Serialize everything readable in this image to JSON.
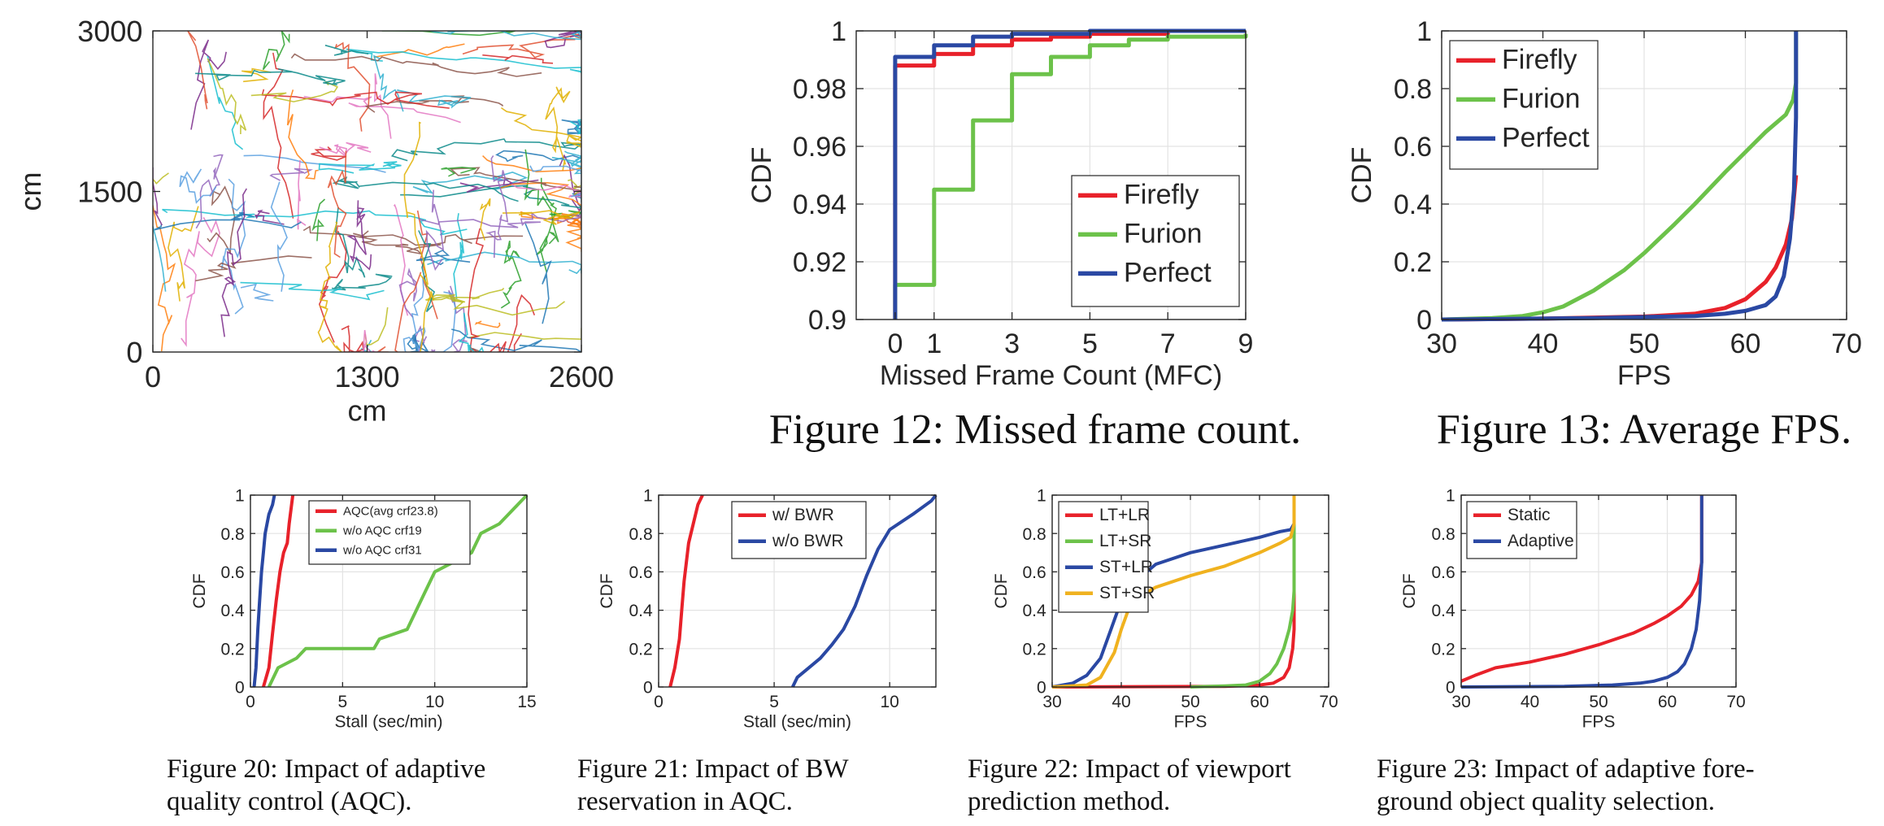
{
  "captions": {
    "fig12": "Figure 12: Missed frame count.",
    "fig13": "Figure 13: Average FPS.",
    "fig20": [
      "Figure 20: Impact of adaptive",
      "quality control (AQC)."
    ],
    "fig21": [
      "Figure 21: Impact of BW",
      "reservation in AQC."
    ],
    "fig22": [
      "Figure 22: Impact of viewport",
      "prediction method."
    ],
    "fig23": [
      "Figure 23: Impact of adaptive fore-",
      "ground object quality selection."
    ]
  },
  "colors": {
    "red": "#E8212A",
    "green": "#6CC24A",
    "blue": "#2A48A3",
    "yellow": "#F0B21F"
  },
  "chart_data": [
    {
      "id": "traj",
      "type": "line",
      "title": "",
      "xlabel": "cm",
      "ylabel": "cm",
      "xlim": [
        0,
        2600
      ],
      "ylim": [
        0,
        3000
      ],
      "xticks": [
        0,
        1300,
        2600
      ],
      "yticks": [
        0,
        1500,
        3000
      ],
      "grid": false,
      "note": "many colored movement trajectories"
    },
    {
      "id": "fig12",
      "type": "line",
      "xlabel": "Missed Frame Count (MFC)",
      "ylabel": "CDF",
      "xlim": [
        -1,
        9
      ],
      "ylim": [
        0.9,
        1.0
      ],
      "xticks": [
        0,
        1,
        3,
        5,
        7,
        9
      ],
      "yticks": [
        0.9,
        0.92,
        0.94,
        0.96,
        0.98,
        1
      ],
      "grid": true,
      "legend": "bottom-right",
      "series": [
        {
          "name": "Firefly",
          "color": "red",
          "steps": [
            [
              0,
              0.9
            ],
            [
              0,
              0.988
            ],
            [
              1,
              0.992
            ],
            [
              2,
              0.995
            ],
            [
              3,
              0.997
            ],
            [
              4,
              0.998
            ],
            [
              5,
              0.999
            ],
            [
              7,
              1.0
            ],
            [
              9,
              1.0
            ]
          ]
        },
        {
          "name": "Furion",
          "color": "green",
          "steps": [
            [
              0,
              0.9
            ],
            [
              0,
              0.912
            ],
            [
              1,
              0.945
            ],
            [
              2,
              0.969
            ],
            [
              3,
              0.985
            ],
            [
              4,
              0.991
            ],
            [
              5,
              0.995
            ],
            [
              6,
              0.997
            ],
            [
              7,
              0.998
            ],
            [
              9,
              0.999
            ]
          ]
        },
        {
          "name": "Perfect",
          "color": "blue",
          "steps": [
            [
              0,
              0.9
            ],
            [
              0,
              0.991
            ],
            [
              1,
              0.995
            ],
            [
              2,
              0.998
            ],
            [
              3,
              0.999
            ],
            [
              5,
              1.0
            ],
            [
              9,
              1.0
            ]
          ]
        }
      ]
    },
    {
      "id": "fig13",
      "type": "line",
      "xlabel": "FPS",
      "ylabel": "CDF",
      "xlim": [
        30,
        70
      ],
      "ylim": [
        0,
        1
      ],
      "xticks": [
        30,
        40,
        50,
        60,
        70
      ],
      "yticks": [
        0,
        0.2,
        0.4,
        0.6,
        0.8,
        1
      ],
      "grid": true,
      "legend": "top-left",
      "series": [
        {
          "name": "Firefly",
          "color": "red",
          "x": [
            30,
            40,
            50,
            55,
            58,
            60,
            62,
            63,
            64,
            64.6,
            65
          ],
          "y": [
            0,
            0.003,
            0.01,
            0.02,
            0.04,
            0.07,
            0.13,
            0.18,
            0.26,
            0.35,
            0.5
          ]
        },
        {
          "name": "Furion",
          "color": "green",
          "x": [
            30,
            35,
            38,
            40,
            42,
            45,
            48,
            50,
            53,
            55,
            58,
            60,
            62,
            64,
            64.7,
            65,
            65
          ],
          "y": [
            0,
            0.005,
            0.012,
            0.025,
            0.045,
            0.1,
            0.17,
            0.23,
            0.33,
            0.4,
            0.51,
            0.58,
            0.65,
            0.71,
            0.76,
            0.82,
            1
          ]
        },
        {
          "name": "Perfect",
          "color": "blue",
          "x": [
            30,
            45,
            55,
            58,
            60,
            62,
            63,
            63.8,
            64.4,
            64.8,
            65,
            65
          ],
          "y": [
            0,
            0.005,
            0.012,
            0.02,
            0.03,
            0.05,
            0.08,
            0.15,
            0.28,
            0.45,
            0.7,
            1
          ]
        }
      ]
    },
    {
      "id": "fig20",
      "type": "line",
      "xlabel": "Stall (sec/min)",
      "ylabel": "CDF",
      "xlim": [
        0,
        15
      ],
      "ylim": [
        0,
        1
      ],
      "xticks": [
        0,
        5,
        10,
        15
      ],
      "yticks": [
        0,
        0.2,
        0.4,
        0.6,
        0.8,
        1
      ],
      "grid": true,
      "legend": "top-right",
      "series": [
        {
          "name": "AQC(avg crf23.8)",
          "color": "red",
          "x": [
            0.7,
            1.0,
            1.2,
            1.4,
            1.6,
            1.8,
            2.0,
            2.1,
            2.3
          ],
          "y": [
            0,
            0.1,
            0.28,
            0.45,
            0.6,
            0.7,
            0.75,
            0.85,
            1.0
          ]
        },
        {
          "name": "w/o AQC crf19",
          "color": "green",
          "x": [
            1.0,
            1.5,
            2.5,
            3.0,
            6.7,
            7.0,
            8.5,
            9.0,
            9.5,
            10.0,
            12.0,
            12.5,
            13.5,
            14.5,
            15.0
          ],
          "y": [
            0,
            0.1,
            0.15,
            0.2,
            0.2,
            0.25,
            0.3,
            0.4,
            0.5,
            0.6,
            0.7,
            0.8,
            0.85,
            0.95,
            1.0
          ]
        },
        {
          "name": "w/o AQC crf31",
          "color": "blue",
          "x": [
            0.2,
            0.3,
            0.4,
            0.5,
            0.6,
            0.7,
            0.8,
            1.0,
            1.2,
            1.3
          ],
          "y": [
            0,
            0.1,
            0.3,
            0.45,
            0.6,
            0.7,
            0.8,
            0.9,
            0.95,
            1.0
          ]
        }
      ]
    },
    {
      "id": "fig21",
      "type": "line",
      "xlabel": "Stall (sec/min)",
      "ylabel": "CDF",
      "xlim": [
        0,
        12
      ],
      "ylim": [
        0,
        1
      ],
      "xticks": [
        0,
        5,
        10
      ],
      "yticks": [
        0,
        0.2,
        0.4,
        0.6,
        0.8,
        1
      ],
      "grid": true,
      "legend": "top-right",
      "series": [
        {
          "name": "w/ BWR",
          "color": "red",
          "x": [
            0.5,
            0.7,
            0.9,
            1.0,
            1.1,
            1.2,
            1.3,
            1.5,
            1.7,
            1.9
          ],
          "y": [
            0,
            0.1,
            0.25,
            0.4,
            0.55,
            0.65,
            0.75,
            0.85,
            0.95,
            1.0
          ]
        },
        {
          "name": "w/o BWR",
          "color": "blue",
          "x": [
            5.8,
            6.0,
            6.5,
            7.0,
            7.5,
            8.0,
            8.5,
            9.0,
            9.5,
            10.0,
            11.0,
            11.8,
            12.0
          ],
          "y": [
            0,
            0.05,
            0.1,
            0.15,
            0.22,
            0.3,
            0.42,
            0.58,
            0.72,
            0.82,
            0.9,
            0.97,
            1.0
          ]
        }
      ]
    },
    {
      "id": "fig22",
      "type": "line",
      "xlabel": "FPS",
      "ylabel": "CDF",
      "xlim": [
        30,
        70
      ],
      "ylim": [
        0,
        1
      ],
      "xticks": [
        30,
        40,
        50,
        60,
        70
      ],
      "yticks": [
        0,
        0.2,
        0.4,
        0.6,
        0.8,
        1
      ],
      "grid": true,
      "legend": "top-left",
      "series": [
        {
          "name": "LT+LR",
          "color": "red",
          "x": [
            30,
            55,
            60,
            62,
            63.5,
            64.3,
            64.8,
            65,
            65
          ],
          "y": [
            0,
            0.003,
            0.01,
            0.02,
            0.05,
            0.1,
            0.2,
            0.3,
            1
          ]
        },
        {
          "name": "LT+SR",
          "color": "green",
          "x": [
            50,
            55,
            58,
            60,
            61.5,
            62.5,
            63.5,
            64.3,
            64.8,
            65,
            65
          ],
          "y": [
            0,
            0.005,
            0.01,
            0.03,
            0.07,
            0.12,
            0.2,
            0.3,
            0.4,
            0.5,
            1
          ]
        },
        {
          "name": "ST+LR",
          "color": "blue",
          "x": [
            30,
            33,
            35,
            37,
            38.5,
            40,
            42,
            45,
            50,
            55,
            60,
            63,
            64.5,
            65,
            65
          ],
          "y": [
            0,
            0.02,
            0.06,
            0.15,
            0.3,
            0.45,
            0.55,
            0.64,
            0.7,
            0.74,
            0.78,
            0.81,
            0.82,
            0.85,
            1
          ]
        },
        {
          "name": "ST+SR",
          "color": "yellow",
          "x": [
            30,
            35,
            37,
            39,
            40,
            41,
            43,
            45,
            50,
            55,
            60,
            63,
            64.5,
            65,
            65
          ],
          "y": [
            0,
            0.01,
            0.05,
            0.18,
            0.3,
            0.4,
            0.48,
            0.52,
            0.58,
            0.63,
            0.7,
            0.75,
            0.78,
            0.85,
            1
          ]
        }
      ]
    },
    {
      "id": "fig23",
      "type": "line",
      "xlabel": "FPS",
      "ylabel": "CDF",
      "xlim": [
        30,
        70
      ],
      "ylim": [
        0,
        1
      ],
      "xticks": [
        30,
        40,
        50,
        60,
        70
      ],
      "yticks": [
        0,
        0.2,
        0.4,
        0.6,
        0.8,
        1
      ],
      "grid": true,
      "legend": "top-left",
      "series": [
        {
          "name": "Static",
          "color": "red",
          "x": [
            30,
            32,
            35,
            40,
            45,
            50,
            55,
            58,
            60,
            62,
            63.5,
            64.5,
            65,
            65
          ],
          "y": [
            0.03,
            0.06,
            0.1,
            0.13,
            0.17,
            0.22,
            0.28,
            0.33,
            0.37,
            0.42,
            0.48,
            0.55,
            0.65,
            1
          ]
        },
        {
          "name": "Adaptive",
          "color": "blue",
          "x": [
            30,
            45,
            52,
            56,
            58,
            60,
            61.5,
            62.5,
            63.5,
            64.2,
            64.7,
            65,
            65
          ],
          "y": [
            0,
            0.003,
            0.01,
            0.02,
            0.03,
            0.05,
            0.08,
            0.12,
            0.2,
            0.3,
            0.45,
            0.65,
            1
          ]
        }
      ]
    }
  ]
}
